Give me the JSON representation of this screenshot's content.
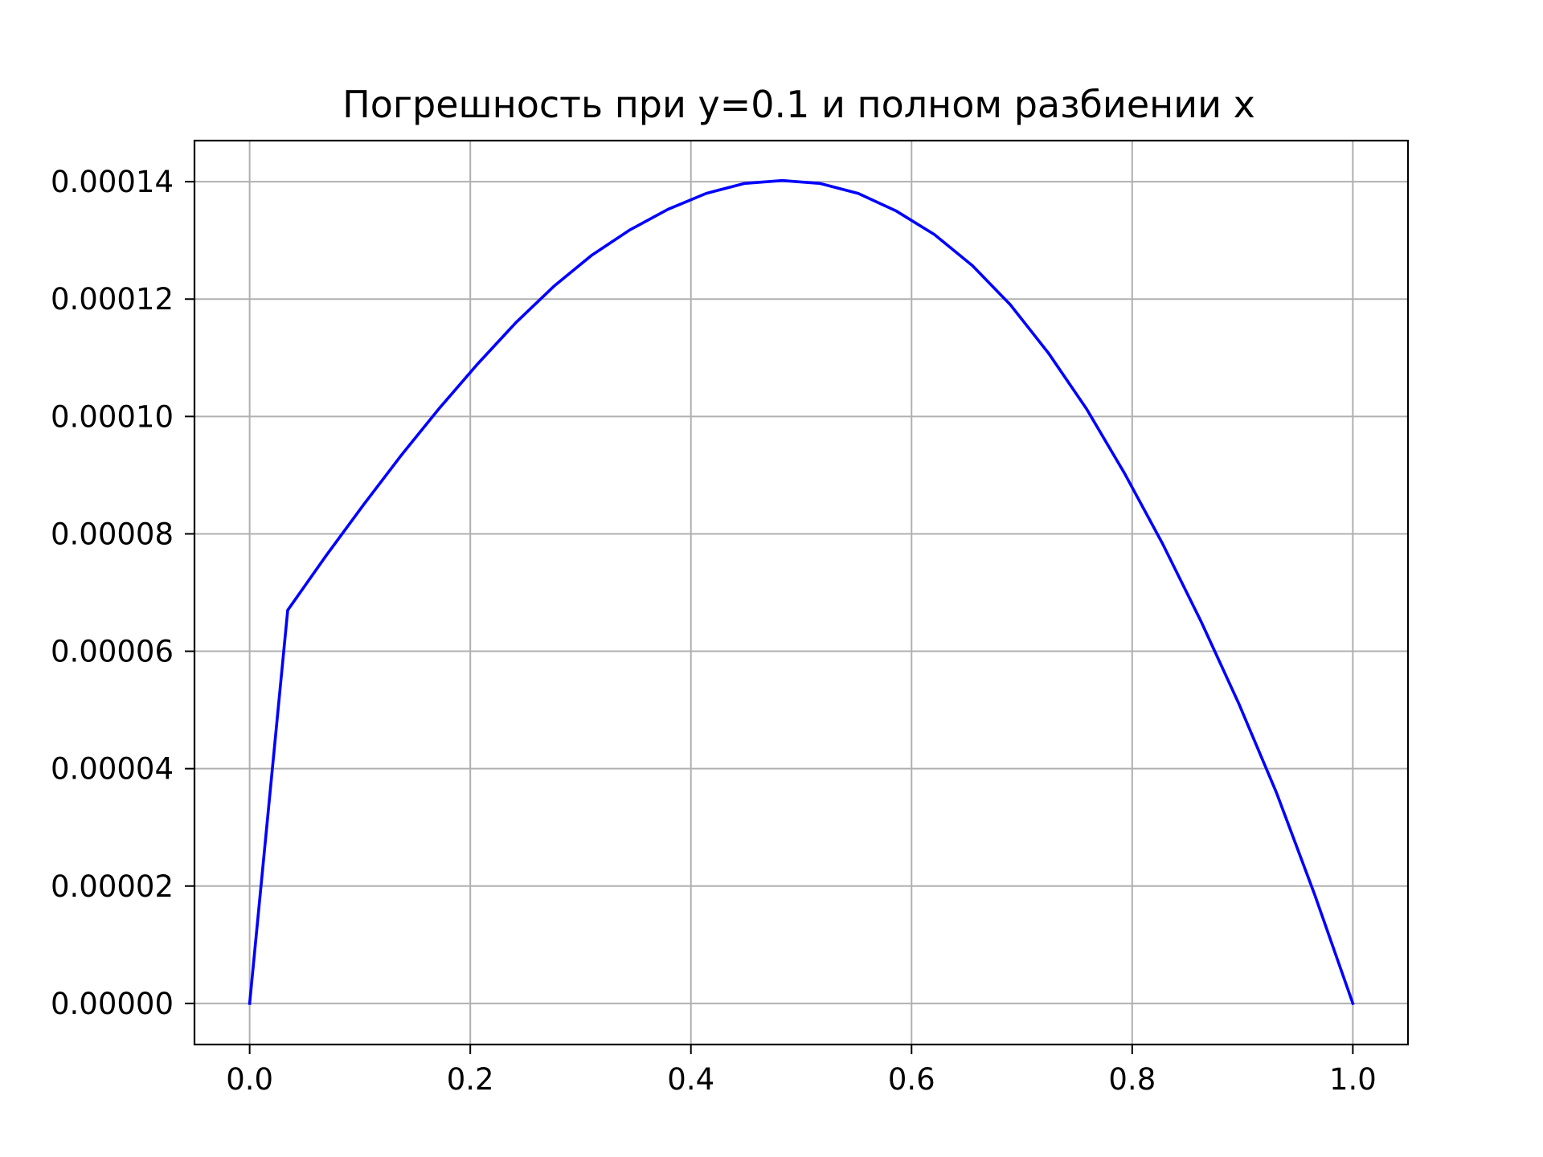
{
  "chart_data": {
    "type": "line",
    "title": "Погрешность при y=0.1 и полном разбиении x",
    "xlabel": "",
    "ylabel": "",
    "xlim": [
      -0.05,
      1.05
    ],
    "ylim": [
      -7e-06,
      0.000147
    ],
    "grid": true,
    "x_ticks": [
      {
        "value": 0.0,
        "label": "0.0"
      },
      {
        "value": 0.2,
        "label": "0.2"
      },
      {
        "value": 0.4,
        "label": "0.4"
      },
      {
        "value": 0.6,
        "label": "0.6"
      },
      {
        "value": 0.8,
        "label": "0.8"
      },
      {
        "value": 1.0,
        "label": "1.0"
      }
    ],
    "y_ticks": [
      {
        "value": 0.0,
        "label": "0.00000"
      },
      {
        "value": 2e-05,
        "label": "0.00002"
      },
      {
        "value": 4e-05,
        "label": "0.00004"
      },
      {
        "value": 6e-05,
        "label": "0.00006"
      },
      {
        "value": 8e-05,
        "label": "0.00008"
      },
      {
        "value": 0.0001,
        "label": "0.00010"
      },
      {
        "value": 0.00012,
        "label": "0.00012"
      },
      {
        "value": 0.00014,
        "label": "0.00014"
      }
    ],
    "series": [
      {
        "color": "#0000ff",
        "x": [
          0.0,
          0.0345,
          0.069,
          0.1034,
          0.1379,
          0.1724,
          0.2069,
          0.2414,
          0.2759,
          0.3103,
          0.3448,
          0.3793,
          0.4138,
          0.4483,
          0.4828,
          0.5172,
          0.5517,
          0.5862,
          0.6207,
          0.6552,
          0.6897,
          0.7241,
          0.7586,
          0.7931,
          0.8276,
          0.8621,
          0.8966,
          0.931,
          0.9655,
          1.0
        ],
        "y": [
          0.0,
          6.7e-05,
          7.62e-05,
          8.5e-05,
          9.35e-05,
          0.0001015,
          0.000109,
          0.000116,
          0.0001222,
          0.0001275,
          0.0001318,
          0.0001353,
          0.000138,
          0.0001397,
          0.0001402,
          0.0001397,
          0.000138,
          0.000135,
          0.000131,
          0.0001257,
          0.000119,
          0.0001108,
          0.0001013,
          9.03e-05,
          7.83e-05,
          6.52e-05,
          5.11e-05,
          3.58e-05,
          1.85e-05,
          0.0
        ]
      }
    ]
  }
}
